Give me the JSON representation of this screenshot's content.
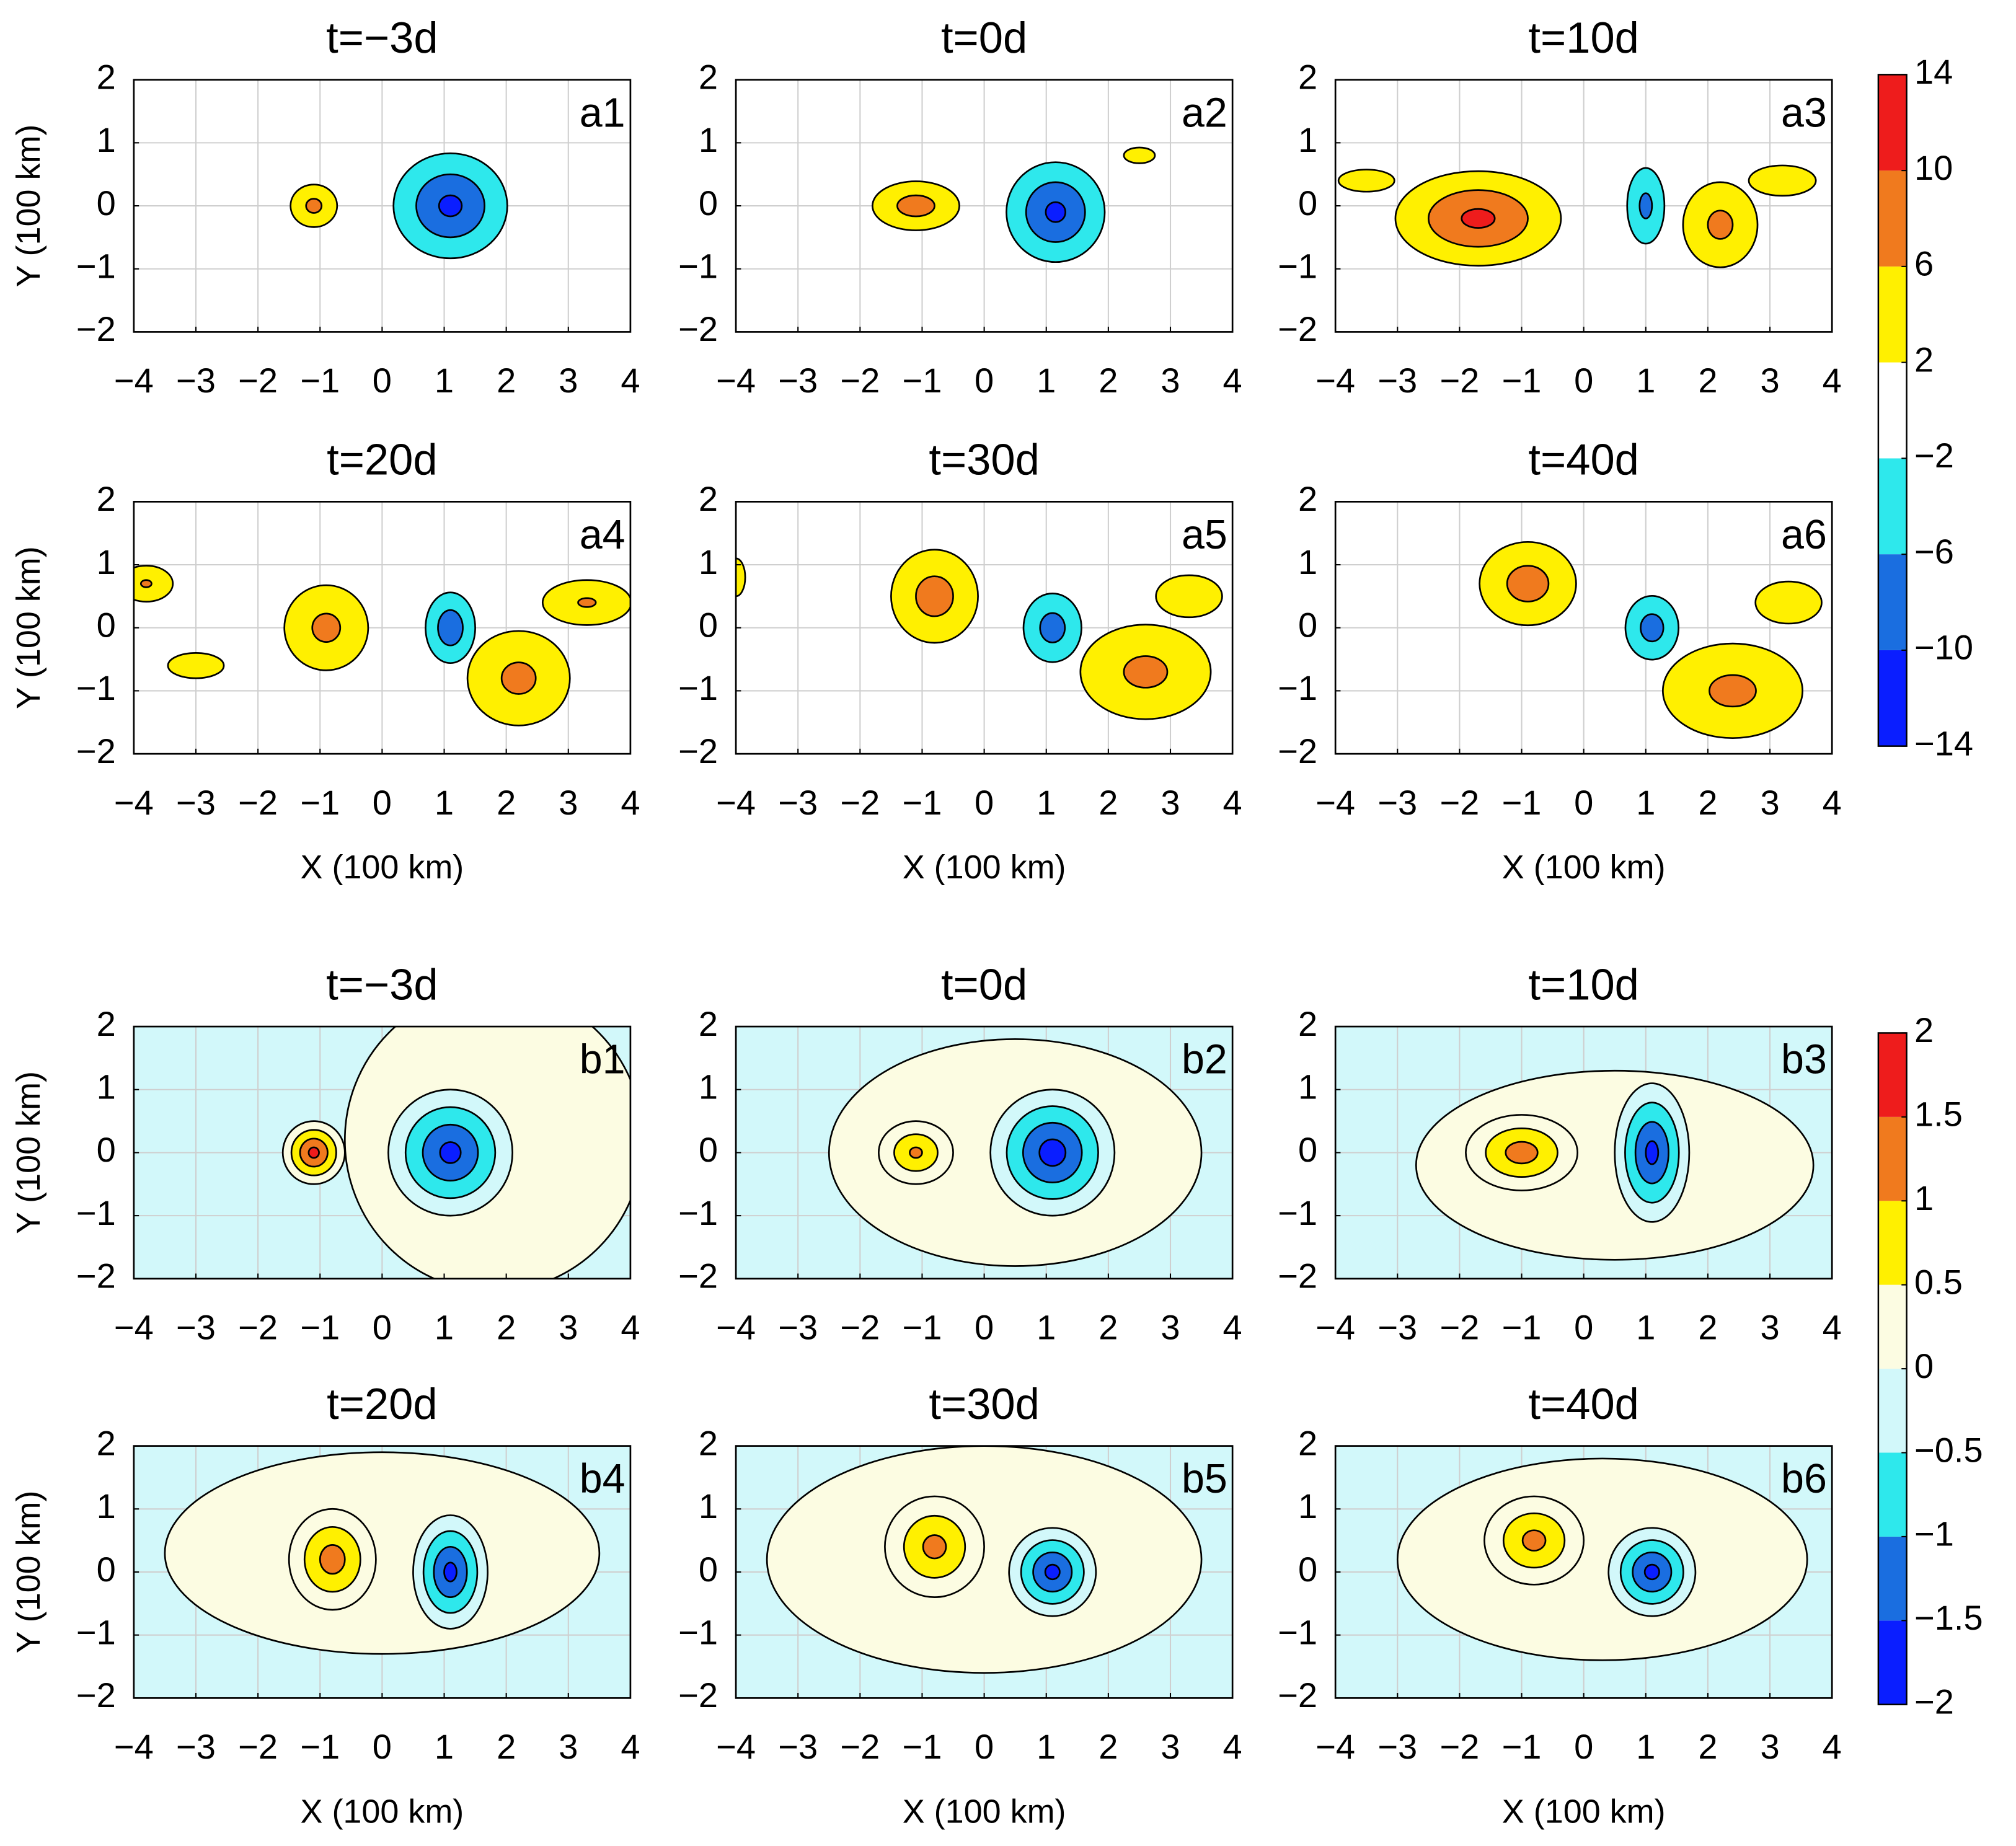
{
  "chart_data": [
    {
      "type": "contour",
      "xlabel": "X (100 km)",
      "ylabel": "Y (100 km)",
      "xlim": [
        -4,
        4
      ],
      "ylim": [
        -2,
        2
      ],
      "xticks": [
        {
          "value": -4,
          "label": "−4"
        },
        {
          "value": -3,
          "label": "−3"
        },
        {
          "value": -2,
          "label": "−2"
        },
        {
          "value": -1,
          "label": "−1"
        },
        0,
        1,
        2,
        3,
        4
      ],
      "yticks": [
        {
          "value": -2,
          "label": "−2"
        },
        {
          "value": -1,
          "label": "−1"
        },
        0,
        1,
        2
      ],
      "grid": true,
      "background": 0,
      "levels": [
        {
          "value": -14,
          "label": "−14"
        },
        {
          "value": -10,
          "label": "−10"
        },
        {
          "value": -6,
          "label": "−6"
        },
        {
          "value": -2,
          "label": "−2"
        },
        2,
        6,
        10,
        14
      ],
      "colors": [
        "#0a1eff",
        "#1a6ee0",
        "#2ee8ec",
        "#ffffff",
        "#fff000",
        "#f07a1e",
        "#ee1c1c"
      ],
      "panels": [
        {
          "title": "t=−3d",
          "label": "a1",
          "features": [
            {
              "x": -1.1,
              "y": 0,
              "peak": 8,
              "rx": 0.5,
              "ry": 0.45
            },
            {
              "x": 1.1,
              "y": 0,
              "peak": -12,
              "rx": 1.1,
              "ry": 1.0
            }
          ]
        },
        {
          "title": "t=0d",
          "label": "a2",
          "features": [
            {
              "x": -1.1,
              "y": 0,
              "peak": 9,
              "rx": 0.9,
              "ry": 0.5
            },
            {
              "x": 1.15,
              "y": -0.1,
              "peak": -12,
              "rx": 0.95,
              "ry": 0.95
            },
            {
              "x": 2.5,
              "y": 0.8,
              "peak": 4,
              "rx": 0.5,
              "ry": 0.25
            }
          ]
        },
        {
          "title": "t=10d",
          "label": "a3",
          "features": [
            {
              "x": -3.5,
              "y": 0.4,
              "peak": 4,
              "rx": 0.9,
              "ry": 0.35
            },
            {
              "x": 3.2,
              "y": 0.4,
              "peak": 5,
              "rx": 0.9,
              "ry": 0.4
            },
            {
              "x": -1.7,
              "y": -0.2,
              "peak": 12,
              "rx": 1.6,
              "ry": 0.9
            },
            {
              "x": 1.0,
              "y": 0,
              "peak": -8,
              "rx": 0.4,
              "ry": 0.8
            },
            {
              "x": 2.2,
              "y": -0.3,
              "peak": 8,
              "rx": 0.8,
              "ry": 0.9
            }
          ]
        },
        {
          "title": "t=20d",
          "label": "a4",
          "features": [
            {
              "x": -3.0,
              "y": -0.6,
              "peak": 4,
              "rx": 0.9,
              "ry": 0.4
            },
            {
              "x": -3.8,
              "y": 0.7,
              "peak": 7,
              "rx": 0.6,
              "ry": 0.4
            },
            {
              "x": -0.9,
              "y": 0,
              "peak": 8,
              "rx": 0.9,
              "ry": 0.9
            },
            {
              "x": 3.3,
              "y": 0.4,
              "peak": 7,
              "rx": 1.0,
              "ry": 0.5
            },
            {
              "x": 2.2,
              "y": -0.8,
              "peak": 8,
              "rx": 1.1,
              "ry": 1.0
            },
            {
              "x": 1.1,
              "y": 0,
              "peak": -10,
              "rx": 0.5,
              "ry": 0.7
            }
          ]
        },
        {
          "title": "t=30d",
          "label": "a5",
          "features": [
            {
              "x": -4,
              "y": 0.8,
              "peak": 4,
              "rx": 0.3,
              "ry": 0.6
            },
            {
              "x": -0.8,
              "y": 0.5,
              "peak": 9,
              "rx": 0.9,
              "ry": 0.95
            },
            {
              "x": 3.3,
              "y": 0.5,
              "peak": 6,
              "rx": 0.8,
              "ry": 0.5
            },
            {
              "x": 2.6,
              "y": -0.7,
              "peak": 8,
              "rx": 1.4,
              "ry": 1.0
            },
            {
              "x": 1.1,
              "y": 0,
              "peak": -9,
              "rx": 0.6,
              "ry": 0.7
            }
          ]
        },
        {
          "title": "t=40d",
          "label": "a6",
          "features": [
            {
              "x": -0.9,
              "y": 0.7,
              "peak": 9,
              "rx": 1.0,
              "ry": 0.85
            },
            {
              "x": 3.3,
              "y": 0.4,
              "peak": 6,
              "rx": 0.8,
              "ry": 0.5
            },
            {
              "x": 2.4,
              "y": -1.0,
              "peak": 8,
              "rx": 1.5,
              "ry": 1.0
            },
            {
              "x": 1.1,
              "y": 0,
              "peak": -9,
              "rx": 0.55,
              "ry": 0.65
            }
          ]
        }
      ]
    },
    {
      "type": "contour",
      "xlabel": "X (100 km)",
      "ylabel": "Y (100 km)",
      "xlim": [
        -4,
        4
      ],
      "ylim": [
        -2,
        2
      ],
      "xticks": [
        {
          "value": -4,
          "label": "−4"
        },
        {
          "value": -3,
          "label": "−3"
        },
        {
          "value": -2,
          "label": "−2"
        },
        {
          "value": -1,
          "label": "−1"
        },
        0,
        1,
        2,
        3,
        4
      ],
      "yticks": [
        {
          "value": -2,
          "label": "−2"
        },
        {
          "value": -1,
          "label": "−1"
        },
        0,
        1,
        2
      ],
      "grid": true,
      "background": -0.2,
      "levels": [
        {
          "value": -2,
          "label": "−2"
        },
        {
          "value": -1.5,
          "label": "−1.5"
        },
        {
          "value": -1,
          "label": "−1"
        },
        {
          "value": -0.5,
          "label": "−0.5"
        },
        0,
        0.5,
        1,
        1.5,
        2
      ],
      "colors": [
        "#0a1eff",
        "#1a6ee0",
        "#2ee8ec",
        "#d2f8fa",
        "#fcfce2",
        "#fff000",
        "#f07a1e",
        "#ee1c1c"
      ],
      "panels": [
        {
          "title": "t=−3d",
          "label": "b1",
          "features": [
            {
              "x": 1.8,
              "y": 0.2,
              "peak": 0.3,
              "rx": 2.4,
              "ry": 2.4
            },
            {
              "x": -1.1,
              "y": 0,
              "peak": 1.8,
              "rx": 0.5,
              "ry": 0.5
            },
            {
              "x": 1.1,
              "y": 0,
              "peak": -1.8,
              "rx": 1.0,
              "ry": 1.0
            }
          ]
        },
        {
          "title": "t=0d",
          "label": "b2",
          "features": [
            {
              "x": 0.5,
              "y": 0,
              "peak": 0.3,
              "rx": 3.0,
              "ry": 1.8
            },
            {
              "x": -1.1,
              "y": 0,
              "peak": 1.2,
              "rx": 0.6,
              "ry": 0.5
            },
            {
              "x": 1.1,
              "y": 0,
              "peak": -1.9,
              "rx": 1.0,
              "ry": 1.0
            }
          ]
        },
        {
          "title": "t=10d",
          "label": "b3",
          "features": [
            {
              "x": 0.5,
              "y": -0.2,
              "peak": 0.3,
              "rx": 3.2,
              "ry": 1.5
            },
            {
              "x": -1,
              "y": 0,
              "peak": 1.4,
              "rx": 0.9,
              "ry": 0.6
            },
            {
              "x": 1.1,
              "y": 0,
              "peak": -1.8,
              "rx": 0.6,
              "ry": 1.1
            }
          ]
        },
        {
          "title": "t=20d",
          "label": "b4",
          "features": [
            {
              "x": 0,
              "y": 0.3,
              "peak": 0.3,
              "rx": 3.5,
              "ry": 1.6
            },
            {
              "x": -0.8,
              "y": 0.2,
              "peak": 1.4,
              "rx": 0.7,
              "ry": 0.8
            },
            {
              "x": 1.1,
              "y": 0,
              "peak": -1.8,
              "rx": 0.6,
              "ry": 0.9
            }
          ]
        },
        {
          "title": "t=30d",
          "label": "b5",
          "features": [
            {
              "x": 0,
              "y": 0.2,
              "peak": 0.3,
              "rx": 3.5,
              "ry": 1.8
            },
            {
              "x": -0.8,
              "y": 0.4,
              "peak": 1.3,
              "rx": 0.8,
              "ry": 0.8
            },
            {
              "x": 1.1,
              "y": 0,
              "peak": -1.8,
              "rx": 0.7,
              "ry": 0.7
            }
          ]
        },
        {
          "title": "t=40d",
          "label": "b6",
          "features": [
            {
              "x": 0.3,
              "y": 0.2,
              "peak": 0.3,
              "rx": 3.3,
              "ry": 1.6
            },
            {
              "x": -0.8,
              "y": 0.5,
              "peak": 1.3,
              "rx": 0.8,
              "ry": 0.7
            },
            {
              "x": 1.1,
              "y": 0,
              "peak": -1.8,
              "rx": 0.7,
              "ry": 0.7
            }
          ]
        }
      ]
    }
  ]
}
